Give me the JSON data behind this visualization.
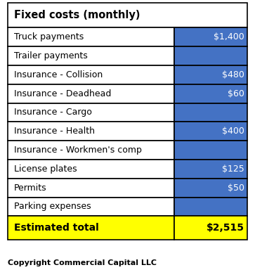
{
  "title": "Fixed costs (monthly)",
  "rows": [
    {
      "label": "Truck payments",
      "value": "$1,400"
    },
    {
      "label": "Trailer payments",
      "value": ""
    },
    {
      "label": "Insurance - Collision",
      "value": "$480"
    },
    {
      "label": "Insurance - Deadhead",
      "value": "$60"
    },
    {
      "label": "Insurance - Cargo",
      "value": ""
    },
    {
      "label": "Insurance - Health",
      "value": "$400"
    },
    {
      "label": "Insurance - Workmen's comp",
      "value": ""
    },
    {
      "label": "License plates",
      "value": "$125"
    },
    {
      "label": "Permits",
      "value": "$50"
    },
    {
      "label": "Parking expenses",
      "value": ""
    }
  ],
  "total_label": "Estimated total",
  "total_value": "$2,515",
  "copyright": "Copyright Commercial Capital LLC",
  "header_bg": "#ffffff",
  "header_text": "#000000",
  "value_col_bg": "#4472c4",
  "value_col_text": "#ffffff",
  "total_bg": "#ffff00",
  "total_text": "#000000",
  "border_color": "#000000",
  "body_bg": "#ffffff",
  "col_split": 0.695,
  "fig_width": 3.63,
  "fig_height": 3.94,
  "dpi": 100
}
